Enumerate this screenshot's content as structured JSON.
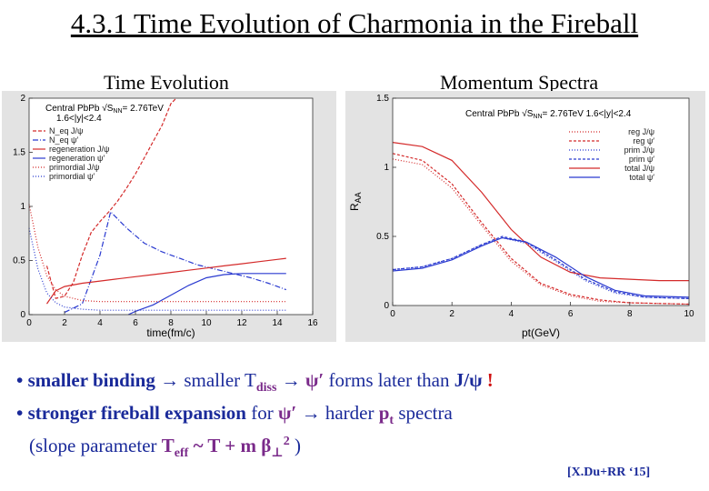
{
  "slide": {
    "title": "4.3.1 Time Evolution of Charmonia in the Fireball",
    "left_heading": "Time Evolution",
    "right_heading": "Momentum Spectra",
    "bullets": {
      "b1_a": "• smaller binding",
      "b1_b": " → smaller T",
      "b1_sub": "diss",
      "b1_c": " →  ",
      "b1_psi": "ψ′",
      "b1_d": " forms later than ",
      "b1_jpsi": "J/ψ",
      "b1_e": " !",
      "b2_a": "• stronger fireball expansion",
      "b2_b": " for ",
      "b2_psi": "ψ′",
      "b2_c": " → harder ",
      "b2_pt": "p",
      "b2_pt_sub": "t",
      "b2_d": " spectra",
      "b3_a": "(slope parameter ",
      "b3_t": "T",
      "b3_sub": "eff",
      "b3_b": " ~ T + m ",
      "b3_beta": "β",
      "b3_perp": "⊥",
      "b3_sup": "2",
      "b3_c": " )"
    },
    "reference": "[X.Du+RR ‘15]"
  },
  "chart_data": [
    {
      "type": "line",
      "title": "",
      "xlabel": "time(fm/c)",
      "ylabel": "",
      "xlim": [
        0,
        16
      ],
      "ylim": [
        0,
        2
      ],
      "x_ticks": [
        "0",
        "2",
        "4",
        "6",
        "8",
        "10",
        "12",
        "14",
        "16"
      ],
      "y_ticks": [
        "0",
        "0.5",
        "1",
        "1.5",
        "2"
      ],
      "legend_position": "top-left",
      "legend_header": [
        "Central PbPb √S",
        "NN",
        "= 2.76TeV",
        "1.6<|y|<2.4"
      ],
      "series": [
        {
          "name": "N_eq J/ψ",
          "color": "#d42a2a",
          "dash": "4,2",
          "points": [
            [
              1.0,
              0.45
            ],
            [
              1.5,
              0.15
            ],
            [
              2.0,
              0.17
            ],
            [
              2.5,
              0.3
            ],
            [
              3.0,
              0.55
            ],
            [
              3.5,
              0.76
            ],
            [
              4.0,
              0.86
            ],
            [
              4.5,
              0.95
            ],
            [
              5.0,
              1.05
            ],
            [
              5.5,
              1.17
            ],
            [
              6.0,
              1.3
            ],
            [
              6.5,
              1.45
            ],
            [
              7.0,
              1.6
            ],
            [
              7.5,
              1.75
            ],
            [
              8.0,
              1.95
            ],
            [
              8.3,
              2.05
            ]
          ]
        },
        {
          "name": "N_eq ψ′",
          "color": "#2a3ad0",
          "dash": "6,2,1,2",
          "points": [
            [
              2.0,
              0.02
            ],
            [
              3.0,
              0.1
            ],
            [
              4.0,
              0.55
            ],
            [
              4.6,
              0.95
            ],
            [
              5.5,
              0.8
            ],
            [
              6.5,
              0.66
            ],
            [
              7.5,
              0.58
            ],
            [
              8.5,
              0.52
            ],
            [
              9.5,
              0.46
            ],
            [
              10.5,
              0.42
            ],
            [
              11.5,
              0.38
            ],
            [
              12.5,
              0.34
            ],
            [
              13.5,
              0.29
            ],
            [
              14.5,
              0.23
            ]
          ]
        },
        {
          "name": "regeneration J/ψ",
          "color": "#d42a2a",
          "dash": "",
          "points": [
            [
              1.0,
              0.1
            ],
            [
              1.5,
              0.22
            ],
            [
              2.0,
              0.26
            ],
            [
              3.0,
              0.29
            ],
            [
              4.0,
              0.31
            ],
            [
              5.0,
              0.33
            ],
            [
              6.0,
              0.35
            ],
            [
              7.0,
              0.37
            ],
            [
              8.0,
              0.39
            ],
            [
              9.0,
              0.41
            ],
            [
              10.0,
              0.43
            ],
            [
              11.0,
              0.45
            ],
            [
              12.0,
              0.47
            ],
            [
              13.0,
              0.49
            ],
            [
              14.0,
              0.51
            ],
            [
              14.5,
              0.52
            ]
          ]
        },
        {
          "name": "regeneration ψ′",
          "color": "#2a3ad0",
          "dash": "",
          "points": [
            [
              5.6,
              0.0
            ],
            [
              6.0,
              0.03
            ],
            [
              7.0,
              0.09
            ],
            [
              8.0,
              0.18
            ],
            [
              9.0,
              0.27
            ],
            [
              10.0,
              0.34
            ],
            [
              11.0,
              0.37
            ],
            [
              12.0,
              0.38
            ],
            [
              13.0,
              0.38
            ],
            [
              14.5,
              0.38
            ]
          ]
        },
        {
          "name": "primordial J/ψ",
          "color": "#d42a2a",
          "dash": "1,2",
          "points": [
            [
              0.0,
              1.02
            ],
            [
              0.5,
              0.62
            ],
            [
              1.0,
              0.36
            ],
            [
              1.5,
              0.23
            ],
            [
              2.0,
              0.17
            ],
            [
              3.0,
              0.13
            ],
            [
              4.0,
              0.12
            ],
            [
              6.0,
              0.12
            ],
            [
              10.0,
              0.12
            ],
            [
              14.5,
              0.12
            ]
          ]
        },
        {
          "name": "primordial ψ′",
          "color": "#2a3ad0",
          "dash": "1,2",
          "points": [
            [
              0.0,
              0.8
            ],
            [
              0.5,
              0.42
            ],
            [
              1.0,
              0.2
            ],
            [
              1.5,
              0.11
            ],
            [
              2.0,
              0.07
            ],
            [
              3.0,
              0.05
            ],
            [
              4.0,
              0.04
            ],
            [
              6.0,
              0.04
            ],
            [
              10.0,
              0.04
            ],
            [
              14.5,
              0.04
            ]
          ]
        }
      ]
    },
    {
      "type": "line",
      "title": "",
      "xlabel": "pt(GeV)",
      "ylabel": "R",
      "ylabel_sub": "AA",
      "xlim": [
        0,
        10
      ],
      "ylim": [
        0,
        1.5
      ],
      "x_ticks": [
        "0",
        "2",
        "4",
        "6",
        "8",
        "10"
      ],
      "y_ticks": [
        "0",
        "0.5",
        "1",
        "1.5"
      ],
      "legend_position": "top-right",
      "legend_header": [
        "Central PbPb √S",
        "NN",
        "= 2.76TeV 1.6<|y|<2.4"
      ],
      "series": [
        {
          "name": "reg J/ψ",
          "color": "#d42a2a",
          "dash": "1,2",
          "points": [
            [
              0,
              1.06
            ],
            [
              1,
              1.02
            ],
            [
              2,
              0.85
            ],
            [
              3,
              0.58
            ],
            [
              4,
              0.32
            ],
            [
              5,
              0.15
            ],
            [
              6,
              0.07
            ],
            [
              7,
              0.03
            ],
            [
              8,
              0.02
            ],
            [
              10,
              0.01
            ]
          ]
        },
        {
          "name": "reg ψ′",
          "color": "#d42a2a",
          "dash": "3,2",
          "points": [
            [
              0,
              1.1
            ],
            [
              1,
              1.05
            ],
            [
              2,
              0.88
            ],
            [
              3,
              0.6
            ],
            [
              4,
              0.34
            ],
            [
              5,
              0.16
            ],
            [
              6,
              0.08
            ],
            [
              7,
              0.04
            ],
            [
              8,
              0.02
            ],
            [
              10,
              0.01
            ]
          ]
        },
        {
          "name": "prim J/ψ",
          "color": "#2a3ad0",
          "dash": "1,2",
          "points": [
            [
              0,
              0.26
            ],
            [
              1,
              0.28
            ],
            [
              2,
              0.34
            ],
            [
              3,
              0.44
            ],
            [
              3.7,
              0.49
            ],
            [
              4.5,
              0.45
            ],
            [
              5.5,
              0.32
            ],
            [
              6.5,
              0.18
            ],
            [
              7.5,
              0.09
            ],
            [
              8.5,
              0.06
            ],
            [
              10,
              0.05
            ]
          ]
        },
        {
          "name": "prim ψ′",
          "color": "#2a3ad0",
          "dash": "3,2",
          "points": [
            [
              0,
              0.26
            ],
            [
              1,
              0.28
            ],
            [
              2,
              0.34
            ],
            [
              3,
              0.44
            ],
            [
              3.7,
              0.5
            ],
            [
              4.5,
              0.46
            ],
            [
              5.5,
              0.33
            ],
            [
              6.5,
              0.19
            ],
            [
              7.5,
              0.1
            ],
            [
              8.5,
              0.06
            ],
            [
              10,
              0.05
            ]
          ]
        },
        {
          "name": "total J/ψ",
          "color": "#d42a2a",
          "dash": "",
          "points": [
            [
              0,
              1.18
            ],
            [
              1,
              1.15
            ],
            [
              2,
              1.05
            ],
            [
              3,
              0.82
            ],
            [
              4,
              0.55
            ],
            [
              5,
              0.35
            ],
            [
              6,
              0.24
            ],
            [
              7,
              0.2
            ],
            [
              8,
              0.19
            ],
            [
              9,
              0.18
            ],
            [
              10,
              0.18
            ]
          ]
        },
        {
          "name": "total ψ′",
          "color": "#2a3ad0",
          "dash": "",
          "points": [
            [
              0,
              0.25
            ],
            [
              1,
              0.27
            ],
            [
              2,
              0.33
            ],
            [
              3,
              0.43
            ],
            [
              3.7,
              0.49
            ],
            [
              4.5,
              0.46
            ],
            [
              5.5,
              0.35
            ],
            [
              6.5,
              0.21
            ],
            [
              7.5,
              0.11
            ],
            [
              8.5,
              0.07
            ],
            [
              10,
              0.06
            ]
          ]
        }
      ]
    }
  ]
}
